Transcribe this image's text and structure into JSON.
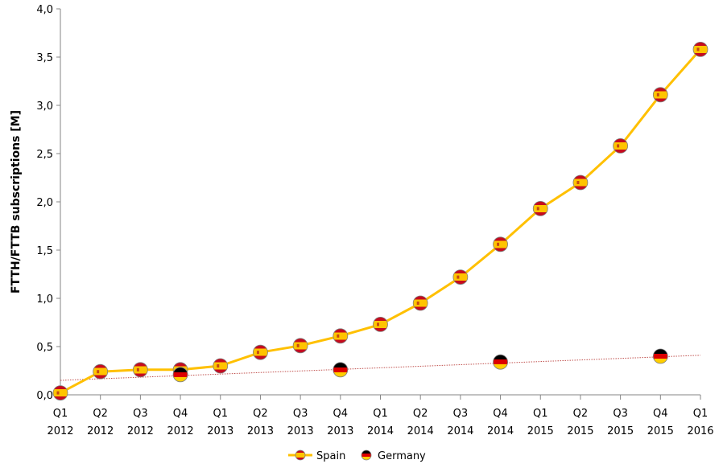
{
  "chart_data": {
    "type": "line",
    "title": "",
    "xlabel": "",
    "ylabel": "FTTH/FTTB subscriptions [M]",
    "ylim": [
      0,
      4
    ],
    "yticks": [
      "0,0",
      "0,5",
      "1,0",
      "1,5",
      "2,0",
      "2,5",
      "3,0",
      "3,5",
      "4,0"
    ],
    "categories": [
      [
        "Q1",
        "2012"
      ],
      [
        "Q2",
        "2012"
      ],
      [
        "Q3",
        "2012"
      ],
      [
        "Q4",
        "2012"
      ],
      [
        "Q1",
        "2013"
      ],
      [
        "Q2",
        "2013"
      ],
      [
        "Q3",
        "2013"
      ],
      [
        "Q4",
        "2013"
      ],
      [
        "Q1",
        "2014"
      ],
      [
        "Q2",
        "2014"
      ],
      [
        "Q3",
        "2014"
      ],
      [
        "Q4",
        "2014"
      ],
      [
        "Q1",
        "2015"
      ],
      [
        "Q2",
        "2015"
      ],
      [
        "Q3",
        "2015"
      ],
      [
        "Q4",
        "2015"
      ],
      [
        "Q1",
        "2016"
      ]
    ],
    "series": [
      {
        "name": "Spain",
        "color": "#ffc000",
        "marker": "spain-flag",
        "values": [
          0.02,
          0.24,
          0.26,
          0.26,
          0.3,
          0.44,
          0.51,
          0.61,
          0.73,
          0.95,
          1.22,
          1.56,
          1.93,
          2.2,
          2.58,
          3.11,
          3.58
        ]
      },
      {
        "name": "Germany",
        "marker": "germany-flag",
        "values": [
          null,
          null,
          null,
          0.21,
          null,
          null,
          null,
          0.26,
          null,
          null,
          null,
          0.34,
          null,
          null,
          null,
          0.4,
          null
        ]
      }
    ],
    "trendline": {
      "series": "Germany",
      "color": "#c0504d",
      "style": "dotted",
      "start": 0.15,
      "end": 0.41
    },
    "legend": "bottom",
    "grid": false
  }
}
